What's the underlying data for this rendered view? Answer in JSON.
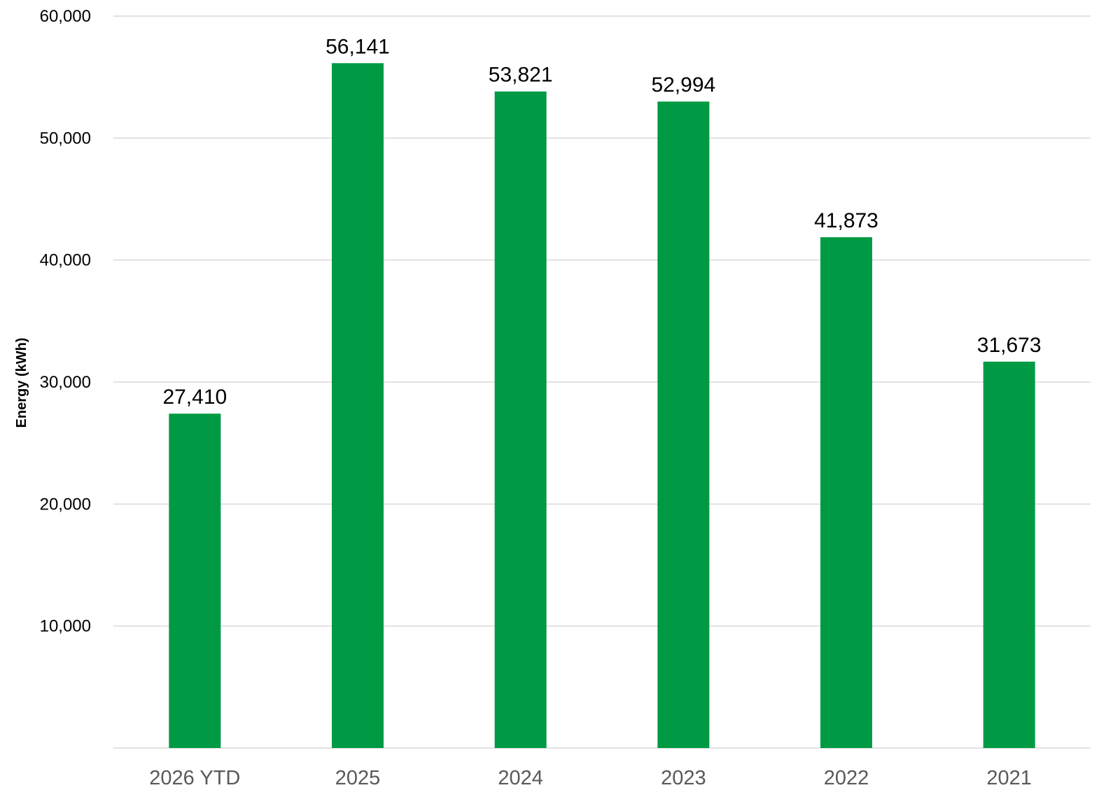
{
  "chart_data": {
    "type": "bar",
    "title": "",
    "xlabel": "",
    "ylabel": "Energy (kWh)",
    "categories": [
      "2026 YTD",
      "2025",
      "2024",
      "2023",
      "2022",
      "2021"
    ],
    "values": [
      27410,
      56141,
      53821,
      52994,
      41873,
      31673
    ],
    "value_labels": [
      "27,410",
      "56,141",
      "53,821",
      "52,994",
      "41,873",
      "31,673"
    ],
    "ylim": [
      0,
      60000
    ],
    "yticks": [
      10000,
      20000,
      30000,
      40000,
      50000,
      60000
    ],
    "ytick_labels": [
      "10,000",
      "20,000",
      "30,000",
      "40,000",
      "50,000",
      "60,000"
    ],
    "grid": true,
    "legend": "none",
    "bar_color": "#009a44"
  }
}
